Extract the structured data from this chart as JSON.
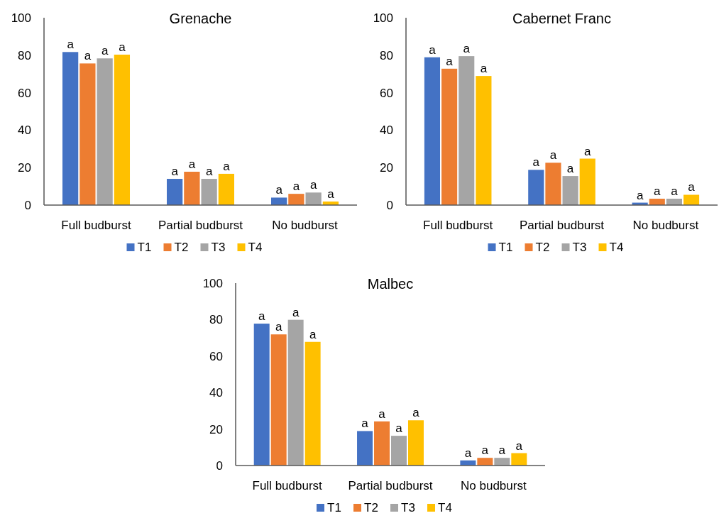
{
  "chart_data": [
    {
      "type": "bar",
      "title": "Grenache",
      "categories": [
        "Full budburst",
        "Partial budburst",
        "No budburst"
      ],
      "ylim": [
        0,
        100
      ],
      "yticks": [
        0,
        20,
        40,
        60,
        80,
        100
      ],
      "grid": false,
      "legend": "bottom",
      "series": [
        {
          "name": "T1",
          "color": "#4472c4",
          "values": [
            81.7,
            14,
            4
          ],
          "value_labels": [
            "a",
            "a",
            "a"
          ]
        },
        {
          "name": "T2",
          "color": "#ed7d31",
          "values": [
            75.6,
            17.8,
            6
          ],
          "value_labels": [
            "a",
            "a",
            "a"
          ]
        },
        {
          "name": "T3",
          "color": "#a5a5a5",
          "values": [
            78.3,
            14,
            6.7
          ],
          "value_labels": [
            "a",
            "a",
            "a"
          ]
        },
        {
          "name": "T4",
          "color": "#ffc000",
          "values": [
            80.3,
            16.7,
            1.9
          ],
          "value_labels": [
            "a",
            "a",
            "a"
          ]
        }
      ]
    },
    {
      "type": "bar",
      "title": "Cabernet Franc",
      "categories": [
        "Full budburst",
        "Partial budburst",
        "No budburst"
      ],
      "ylim": [
        0,
        100
      ],
      "yticks": [
        0,
        20,
        40,
        60,
        80,
        100
      ],
      "grid": false,
      "legend": "bottom",
      "series": [
        {
          "name": "T1",
          "color": "#4472c4",
          "values": [
            78.9,
            18.8,
            1.3
          ],
          "value_labels": [
            "a",
            "a",
            "a"
          ]
        },
        {
          "name": "T2",
          "color": "#ed7d31",
          "values": [
            72.8,
            22.6,
            3.4
          ],
          "value_labels": [
            "a",
            "a",
            "a"
          ]
        },
        {
          "name": "T3",
          "color": "#a5a5a5",
          "values": [
            79.5,
            15.5,
            3.4
          ],
          "value_labels": [
            "a",
            "a",
            "a"
          ]
        },
        {
          "name": "T4",
          "color": "#ffc000",
          "values": [
            68.9,
            24.8,
            5.5
          ],
          "value_labels": [
            "a",
            "a",
            "a"
          ]
        }
      ]
    },
    {
      "type": "bar",
      "title": "Malbec",
      "categories": [
        "Full budburst",
        "Partial budburst",
        "No budburst"
      ],
      "ylim": [
        0,
        100
      ],
      "yticks": [
        0,
        20,
        40,
        60,
        80,
        100
      ],
      "grid": false,
      "legend": "bottom",
      "series": [
        {
          "name": "T1",
          "color": "#4472c4",
          "values": [
            77.8,
            18.9,
            2.8
          ],
          "value_labels": [
            "a",
            "a",
            "a"
          ]
        },
        {
          "name": "T2",
          "color": "#ed7d31",
          "values": [
            71.9,
            24.2,
            4.2
          ],
          "value_labels": [
            "a",
            "a",
            "a"
          ]
        },
        {
          "name": "T3",
          "color": "#a5a5a5",
          "values": [
            79.9,
            16.3,
            4.2
          ],
          "value_labels": [
            "a",
            "a",
            "a"
          ]
        },
        {
          "name": "T4",
          "color": "#ffc000",
          "values": [
            67.8,
            24.8,
            6.8
          ],
          "value_labels": [
            "a",
            "a",
            "a"
          ]
        }
      ]
    }
  ]
}
